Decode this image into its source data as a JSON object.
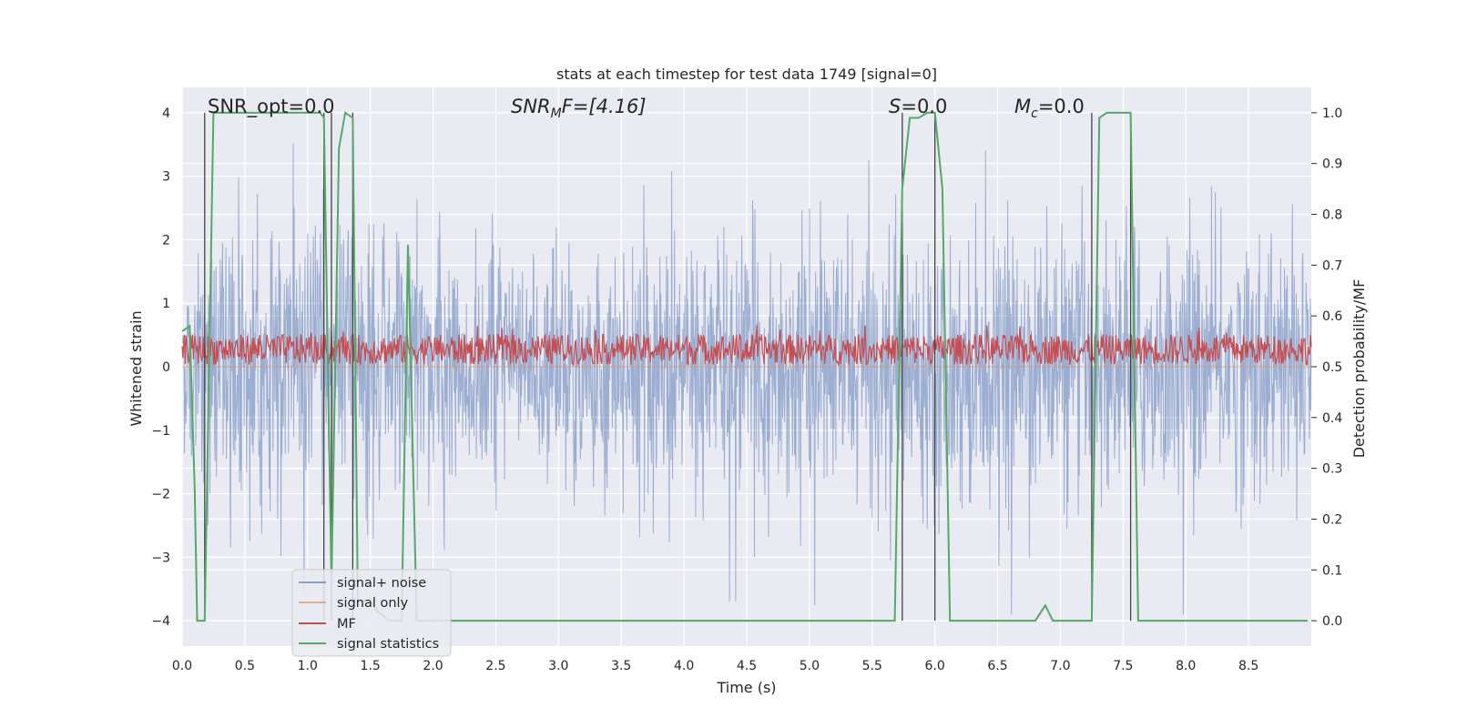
{
  "chart_data": {
    "type": "line",
    "title": "stats at each timestep for test data 1749 [signal=0]",
    "xlabel": "Time (s)",
    "ylabel_left": "Whitened strain",
    "ylabel_right": "Detection probability/MF",
    "xlim": [
      0.0,
      9.0
    ],
    "ylim_left": [
      -4.4,
      4.4
    ],
    "ylim_right": [
      -0.05,
      1.05
    ],
    "xticks": [
      0.0,
      0.5,
      1.0,
      1.5,
      2.0,
      2.5,
      3.0,
      3.5,
      4.0,
      4.5,
      5.0,
      5.5,
      6.0,
      6.5,
      7.0,
      7.5,
      8.0,
      8.5
    ],
    "xtick_labels": [
      "0.0",
      "0.5",
      "1.0",
      "1.5",
      "2.0",
      "2.5",
      "3.0",
      "3.5",
      "4.0",
      "4.5",
      "5.0",
      "5.5",
      "6.0",
      "6.5",
      "7.0",
      "7.5",
      "8.0",
      "8.5"
    ],
    "yticks_left": [
      -4,
      -3,
      -2,
      -1,
      0,
      1,
      2,
      3,
      4
    ],
    "ytick_labels_left": [
      "−4",
      "−3",
      "−2",
      "−1",
      "0",
      "1",
      "2",
      "3",
      "4"
    ],
    "yticks_right": [
      0.0,
      0.1,
      0.2,
      0.3,
      0.4,
      0.5,
      0.6,
      0.7,
      0.8,
      0.9,
      1.0
    ],
    "ytick_labels_right": [
      "0.0",
      "0.1",
      "0.2",
      "0.3",
      "0.4",
      "0.5",
      "0.6",
      "0.7",
      "0.8",
      "0.9",
      "1.0"
    ],
    "grid": true,
    "legend_position": "lower-left",
    "annotations": {
      "snr_opt": "SNR_opt=0.0",
      "snr_mf_symbol": "SNR",
      "snr_mf_sub": "M",
      "snr_mf_rest": "F=[4.16]",
      "s_symbol": "S",
      "s_value": "=0.0",
      "mc_symbol": "M",
      "mc_sub": "c",
      "mc_value": "=0.0"
    },
    "vertical_lines_x": [
      0.18,
      1.13,
      1.19,
      1.36,
      5.74,
      6.0,
      7.25,
      7.56
    ],
    "series": [
      {
        "name": "signal+ noise",
        "color": "#4c72b0",
        "opacity": 0.5,
        "axis": "left",
        "description_samples": "dense whitened strain noise, amplitude mostly within ±2.5, spikes to about ±3.5"
      },
      {
        "name": "signal only",
        "color": "#dd8452",
        "axis": "left",
        "x": [
          0.0,
          9.0
        ],
        "y": [
          0.0,
          0.0
        ]
      },
      {
        "name": "MF",
        "color": "#c44e52",
        "axis": "right",
        "band_center": 0.534,
        "band_halfwidth": 0.03
      },
      {
        "name": "signal statistics",
        "color": "#55a868",
        "axis": "right",
        "x": [
          0.0,
          0.06,
          0.1,
          0.12,
          0.18,
          0.25,
          0.3,
          0.5,
          1.0,
          1.1,
          1.13,
          1.19,
          1.25,
          1.3,
          1.36,
          1.4,
          1.5,
          1.55,
          1.65,
          1.7,
          1.75,
          1.8,
          1.87,
          1.95,
          2.0,
          3.0,
          4.0,
          5.0,
          5.68,
          5.74,
          5.8,
          5.87,
          5.94,
          6.0,
          6.06,
          6.12,
          6.2,
          6.5,
          6.8,
          6.88,
          6.94,
          7.0,
          7.25,
          7.31,
          7.37,
          7.56,
          7.62,
          7.68,
          8.0,
          8.5,
          8.97
        ],
        "y": [
          0.57,
          0.58,
          0.26,
          0.0,
          0.0,
          1.0,
          1.0,
          1.0,
          1.0,
          1.0,
          0.99,
          0.07,
          0.93,
          1.0,
          0.99,
          0.04,
          0.04,
          0.02,
          0.0,
          0.0,
          0.0,
          0.74,
          0.0,
          0.0,
          0.0,
          0.0,
          0.0,
          0.0,
          0.0,
          0.85,
          0.99,
          0.99,
          1.0,
          1.0,
          0.85,
          0.0,
          0.0,
          0.0,
          0.0,
          0.03,
          0.0,
          0.0,
          0.0,
          0.99,
          1.0,
          1.0,
          0.0,
          0.0,
          0.0,
          0.0,
          0.0
        ]
      }
    ]
  }
}
